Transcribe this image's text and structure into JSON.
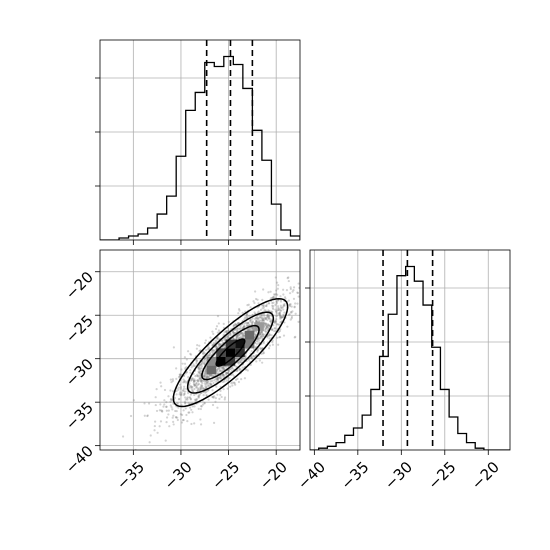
{
  "chart_data": {
    "type": "corner",
    "style": {
      "grid": true,
      "line_color": "#000000",
      "grid_color": "#b0b0b0",
      "point_color": "#808080"
    },
    "histogram_x": {
      "type": "histogram",
      "xlim": [
        -38.5,
        -17.5
      ],
      "bin_edges": [
        -38.5,
        -37.5,
        -36.5,
        -35.5,
        -34.5,
        -33.5,
        -32.5,
        -31.5,
        -30.5,
        -29.5,
        -28.5,
        -27.5,
        -26.5,
        -25.5,
        -24.5,
        -23.5,
        -22.5,
        -21.5,
        -20.5,
        -19.5,
        -18.5,
        -17.5
      ],
      "counts": [
        0,
        0,
        1,
        2,
        3,
        6,
        13,
        22,
        42,
        65,
        74,
        89,
        87,
        92,
        88,
        76,
        55,
        40,
        18,
        5,
        2
      ],
      "quantile_lines": [
        -27.3,
        -24.8,
        -22.5
      ],
      "ticks": [
        -35,
        -30,
        -25,
        -20
      ],
      "tick_labels_visible": false
    },
    "histogram_y": {
      "type": "histogram",
      "xlim": [
        -40.5,
        -17.5
      ],
      "bin_edges": [
        -40.5,
        -39.5,
        -38.5,
        -37.5,
        -36.5,
        -35.5,
        -34.5,
        -33.5,
        -32.5,
        -31.5,
        -30.5,
        -29.5,
        -28.5,
        -27.5,
        -26.5,
        -25.5,
        -24.5,
        -23.5,
        -22.5,
        -21.5,
        -20.5,
        -19.5,
        -18.5,
        -17.5
      ],
      "counts": [
        0,
        1,
        2,
        4,
        8,
        12,
        19,
        33,
        51,
        74,
        95,
        100,
        92,
        79,
        56,
        33,
        18,
        9,
        4,
        1,
        0,
        0,
        0
      ],
      "quantile_lines": [
        -32.1,
        -29.3,
        -26.4
      ],
      "ticks": [
        -40,
        -35,
        -30,
        -25,
        -20
      ],
      "tick_labels": [
        "−40",
        "−35",
        "−30",
        "−25",
        "−20"
      ]
    },
    "scatter_2d": {
      "type": "scatter+contour",
      "xlim": [
        -38.5,
        -17.5
      ],
      "ylim": [
        -40.5,
        -17.5
      ],
      "xticks": [
        -35,
        -30,
        -25,
        -20
      ],
      "xtick_labels": [
        "−35",
        "−30",
        "−25",
        "−20"
      ],
      "yticks": [
        -40,
        -35,
        -30,
        -25,
        -20
      ],
      "ytick_labels": [
        "−40",
        "−35",
        "−30",
        "−25",
        "−20"
      ],
      "correlation": 0.85,
      "center": [
        -24.8,
        -29.3
      ],
      "contour_levels_sigma": [
        0.5,
        1.0,
        1.5,
        2.0
      ],
      "density_cells": [
        {
          "x": -25.8,
          "y": -30.3,
          "w": 1.0,
          "h": 1.0,
          "color": "#000000"
        },
        {
          "x": -24.8,
          "y": -29.3,
          "w": 1.0,
          "h": 1.0,
          "color": "#000000"
        },
        {
          "x": -23.8,
          "y": -28.3,
          "w": 1.0,
          "h": 1.0,
          "color": "#101010"
        },
        {
          "x": -24.8,
          "y": -30.3,
          "w": 1.0,
          "h": 1.0,
          "color": "#3a3a3a"
        },
        {
          "x": -25.8,
          "y": -29.3,
          "w": 1.0,
          "h": 1.0,
          "color": "#4a4a4a"
        },
        {
          "x": -23.8,
          "y": -29.3,
          "w": 1.0,
          "h": 1.0,
          "color": "#2e2e2e"
        },
        {
          "x": -24.8,
          "y": -28.3,
          "w": 1.0,
          "h": 1.0,
          "color": "#3a3a3a"
        },
        {
          "x": -26.8,
          "y": -31.3,
          "w": 1.0,
          "h": 1.0,
          "color": "#6a6a6a"
        },
        {
          "x": -22.8,
          "y": -27.3,
          "w": 1.0,
          "h": 1.0,
          "color": "#6a6a6a"
        },
        {
          "x": -26.8,
          "y": -30.3,
          "w": 1.0,
          "h": 1.0,
          "color": "#8a8a8a"
        },
        {
          "x": -22.8,
          "y": -28.3,
          "w": 1.0,
          "h": 1.0,
          "color": "#7a7a7a"
        },
        {
          "x": -21.8,
          "y": -26.3,
          "w": 1.0,
          "h": 1.0,
          "color": "#9a9a9a"
        }
      ]
    }
  }
}
